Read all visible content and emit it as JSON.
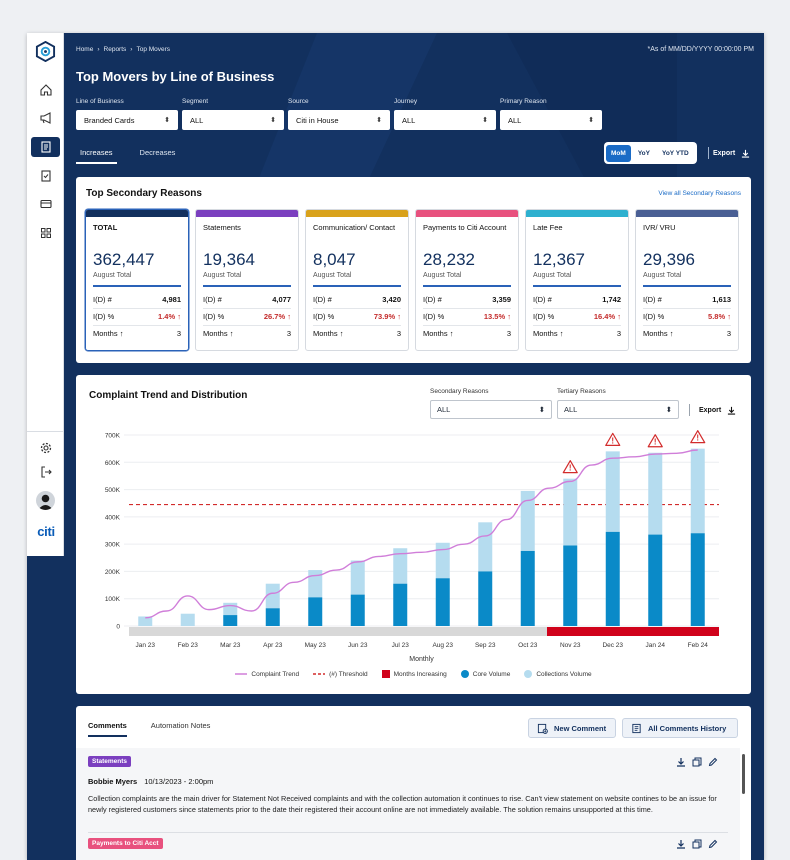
{
  "breadcrumb": {
    "home": "Home",
    "reports": "Reports",
    "current": "Top Movers"
  },
  "as_of": "*As of MM/DD/YYYY 00:00:00 PM",
  "title": "Top Movers by Line of Business",
  "filters": [
    {
      "label": "Line of Business",
      "value": "Branded Cards"
    },
    {
      "label": "Segment",
      "value": "ALL"
    },
    {
      "label": "Source",
      "value": "Citi in House"
    },
    {
      "label": "Journey",
      "value": "ALL"
    },
    {
      "label": "Primary Reason",
      "value": "ALL"
    }
  ],
  "tabs": {
    "increases": "Increases",
    "decreases": "Decreases"
  },
  "period_toggle": {
    "mom": "MoM",
    "yoy": "YoY",
    "yoy_ytd": "YoY YTD"
  },
  "export_label": "Export",
  "sidebar": {
    "brand": "citi"
  },
  "reasons": {
    "title": "Top Secondary Reasons",
    "view_all": "View all Secondary Reasons",
    "row_labels": {
      "id_num": "I(D) #",
      "id_pct": "I(D) %",
      "months": "Months"
    },
    "cards": [
      {
        "name": "TOTAL",
        "value": "362,447",
        "sub": "August Total",
        "id_num": "4,981",
        "id_pct": "1.4%",
        "months": "3",
        "color": "#12305e"
      },
      {
        "name": "Statements",
        "value": "19,364",
        "sub": "August Total",
        "id_num": "4,077",
        "id_pct": "26.7%",
        "months": "3",
        "color": "#7b3fbf"
      },
      {
        "name": "Communication/ Contact",
        "value": "8,047",
        "sub": "August Total",
        "id_num": "3,420",
        "id_pct": "73.9%",
        "months": "3",
        "color": "#d9a21b"
      },
      {
        "name": "Payments to Citi Account",
        "value": "28,232",
        "sub": "August Total",
        "id_num": "3,359",
        "id_pct": "13.5%",
        "months": "3",
        "color": "#e8517e"
      },
      {
        "name": "Late Fee",
        "value": "12,367",
        "sub": "August Total",
        "id_num": "1,742",
        "id_pct": "16.4%",
        "months": "3",
        "color": "#2db0cf"
      },
      {
        "name": "IVR/ VRU",
        "value": "29,396",
        "sub": "August Total",
        "id_num": "1,613",
        "id_pct": "5.8%",
        "months": "3",
        "color": "#4a5f94"
      }
    ]
  },
  "trend": {
    "title": "Complaint Trend and Distribution",
    "secondary": {
      "label": "Secondary Reasons",
      "value": "ALL"
    },
    "tertiary": {
      "label": "Tertiary Reasons",
      "value": "ALL"
    },
    "legend": {
      "trend": "Complaint Trend",
      "threshold": "(#) Threshold",
      "months_increasing": "Months Increasing",
      "core": "Core Volume",
      "collections": "Collections Volume"
    }
  },
  "chart_data": {
    "type": "bar",
    "xlabel": "Monthly",
    "categories": [
      "Jan 23",
      "Feb 23",
      "Mar 23",
      "Apr 23",
      "May 23",
      "Jun 23",
      "Jul 23",
      "Aug 23",
      "Sep 23",
      "Oct 23",
      "Nov 23",
      "Dec 23",
      "Jan 24",
      "Feb 24"
    ],
    "y_ticks": [
      "0",
      "100K",
      "200K",
      "300K",
      "400K",
      "500K",
      "600K",
      "700K"
    ],
    "ylim": [
      0,
      700000
    ],
    "series": [
      {
        "name": "Core Volume",
        "color": "#0a8ac8",
        "values": [
          0,
          0,
          40000,
          65000,
          105000,
          115000,
          155000,
          175000,
          200000,
          275000,
          295000,
          345000,
          335000,
          340000
        ]
      },
      {
        "name": "Collections Volume",
        "color": "#b5dcef",
        "values": [
          35000,
          45000,
          45000,
          90000,
          100000,
          125000,
          130000,
          130000,
          180000,
          220000,
          245000,
          295000,
          300000,
          310000
        ]
      }
    ],
    "line": {
      "name": "Complaint Trend",
      "color": "#d07ed9",
      "points": [
        [
          0,
          30000
        ],
        [
          0.5,
          55000
        ],
        [
          1,
          110000
        ],
        [
          1.5,
          60000
        ],
        [
          2,
          75000
        ],
        [
          2.5,
          55000
        ],
        [
          3,
          120000
        ],
        [
          3.5,
          160000
        ],
        [
          4,
          185000
        ],
        [
          4.5,
          205000
        ],
        [
          5,
          235000
        ],
        [
          5.5,
          255000
        ],
        [
          6,
          265000
        ],
        [
          6.5,
          270000
        ],
        [
          7,
          280000
        ],
        [
          7.5,
          300000
        ],
        [
          8,
          330000
        ],
        [
          8.5,
          390000
        ],
        [
          9,
          460000
        ],
        [
          9.5,
          505000
        ],
        [
          10,
          530000
        ],
        [
          10.5,
          590000
        ],
        [
          11,
          615000
        ],
        [
          11.5,
          620000
        ],
        [
          12,
          630000
        ],
        [
          12.5,
          633000
        ],
        [
          13,
          645000
        ]
      ]
    },
    "threshold": {
      "name": "(#) Threshold",
      "value": 445000,
      "color": "#d22b2b"
    },
    "months_increasing": {
      "name": "Months Increasing",
      "start_index": 10,
      "end_index": 13,
      "color": "#d0021b"
    },
    "alert_indices": [
      10,
      11,
      12,
      13
    ]
  },
  "comments": {
    "tabs": {
      "comments": "Comments",
      "automation": "Automation Notes"
    },
    "new_comment": "New Comment",
    "history": "All Comments History",
    "items": [
      {
        "tag": "Statements",
        "tag_color": "#7b3fbf",
        "author": "Bobbie Myers",
        "date": "10/13/2023 - 2:00pm",
        "text": "Collection complaints are the main driver for Statement Not Received complaints and with the collection automation it continues to rise.  Can't view statement on website contines to be an issue for newly registered customers since statements prior to the date their registered their account online are not immediately available.  The solution remains unsupported at this time."
      },
      {
        "tag": "Payments to Citi Acct",
        "tag_color": "#e8517e"
      }
    ]
  }
}
